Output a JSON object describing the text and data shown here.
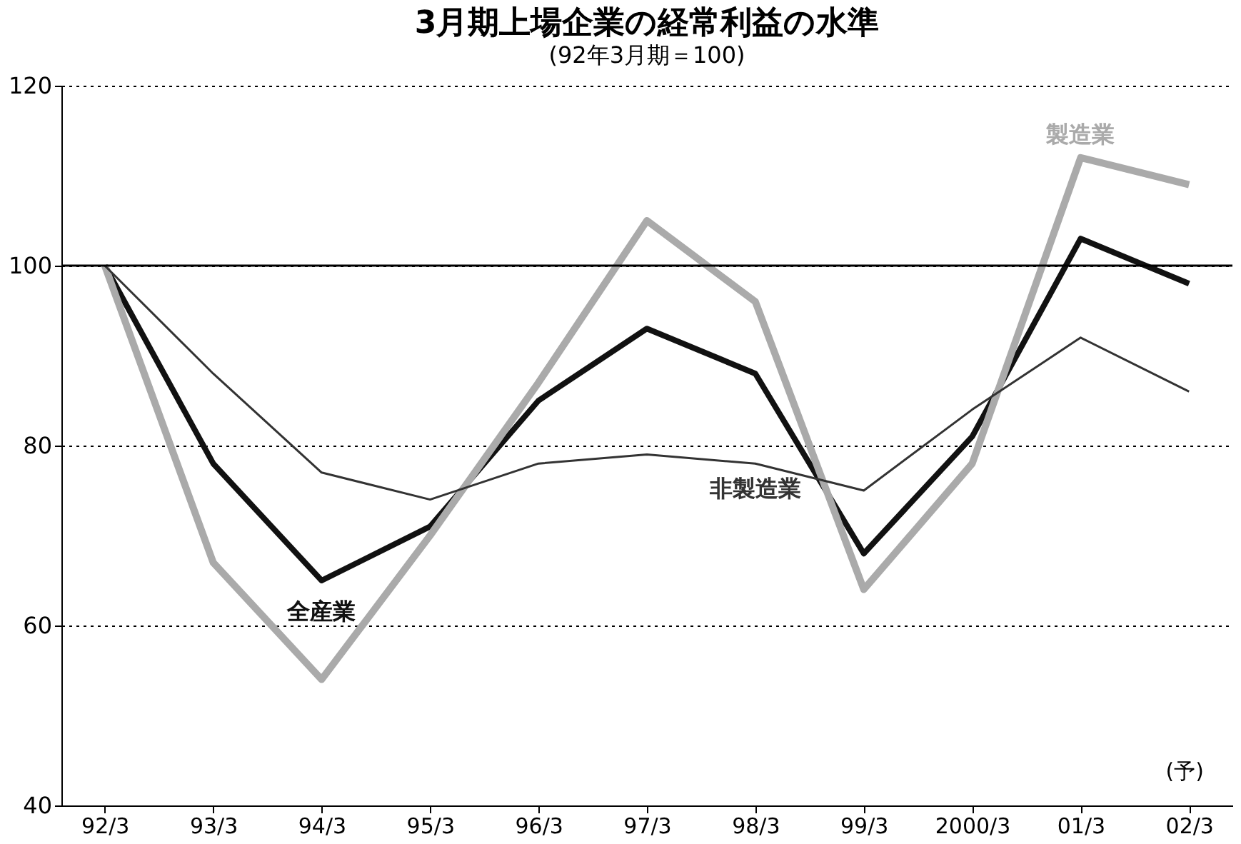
{
  "chart_data": {
    "type": "line",
    "title": "3月期上場企業の経常利益の水準",
    "subtitle": "(92年3月期＝100)",
    "categories": [
      "92/3",
      "93/3",
      "94/3",
      "95/3",
      "96/3",
      "97/3",
      "98/3",
      "99/3",
      "2000/3",
      "01/3",
      "02/3"
    ],
    "series": [
      {
        "name": "全産業",
        "color": "#111111",
        "values": [
          100,
          78,
          65,
          71,
          85,
          93,
          88,
          68,
          81,
          103,
          98
        ]
      },
      {
        "name": "製造業",
        "color": "#aaaaaa",
        "values": [
          100,
          67,
          54,
          70,
          87,
          105,
          96,
          64,
          78,
          112,
          109
        ]
      },
      {
        "name": "非製造業",
        "color": "#333333",
        "values": [
          100,
          88,
          77,
          74,
          78,
          79,
          78,
          75,
          84,
          92,
          86
        ]
      }
    ],
    "ylim": [
      40,
      120
    ],
    "yticks": [
      40,
      60,
      80,
      100,
      120
    ],
    "grid": "y",
    "ref_lines": [
      {
        "axis": "y",
        "value": 100
      }
    ],
    "annotations": [
      "(予)"
    ]
  }
}
